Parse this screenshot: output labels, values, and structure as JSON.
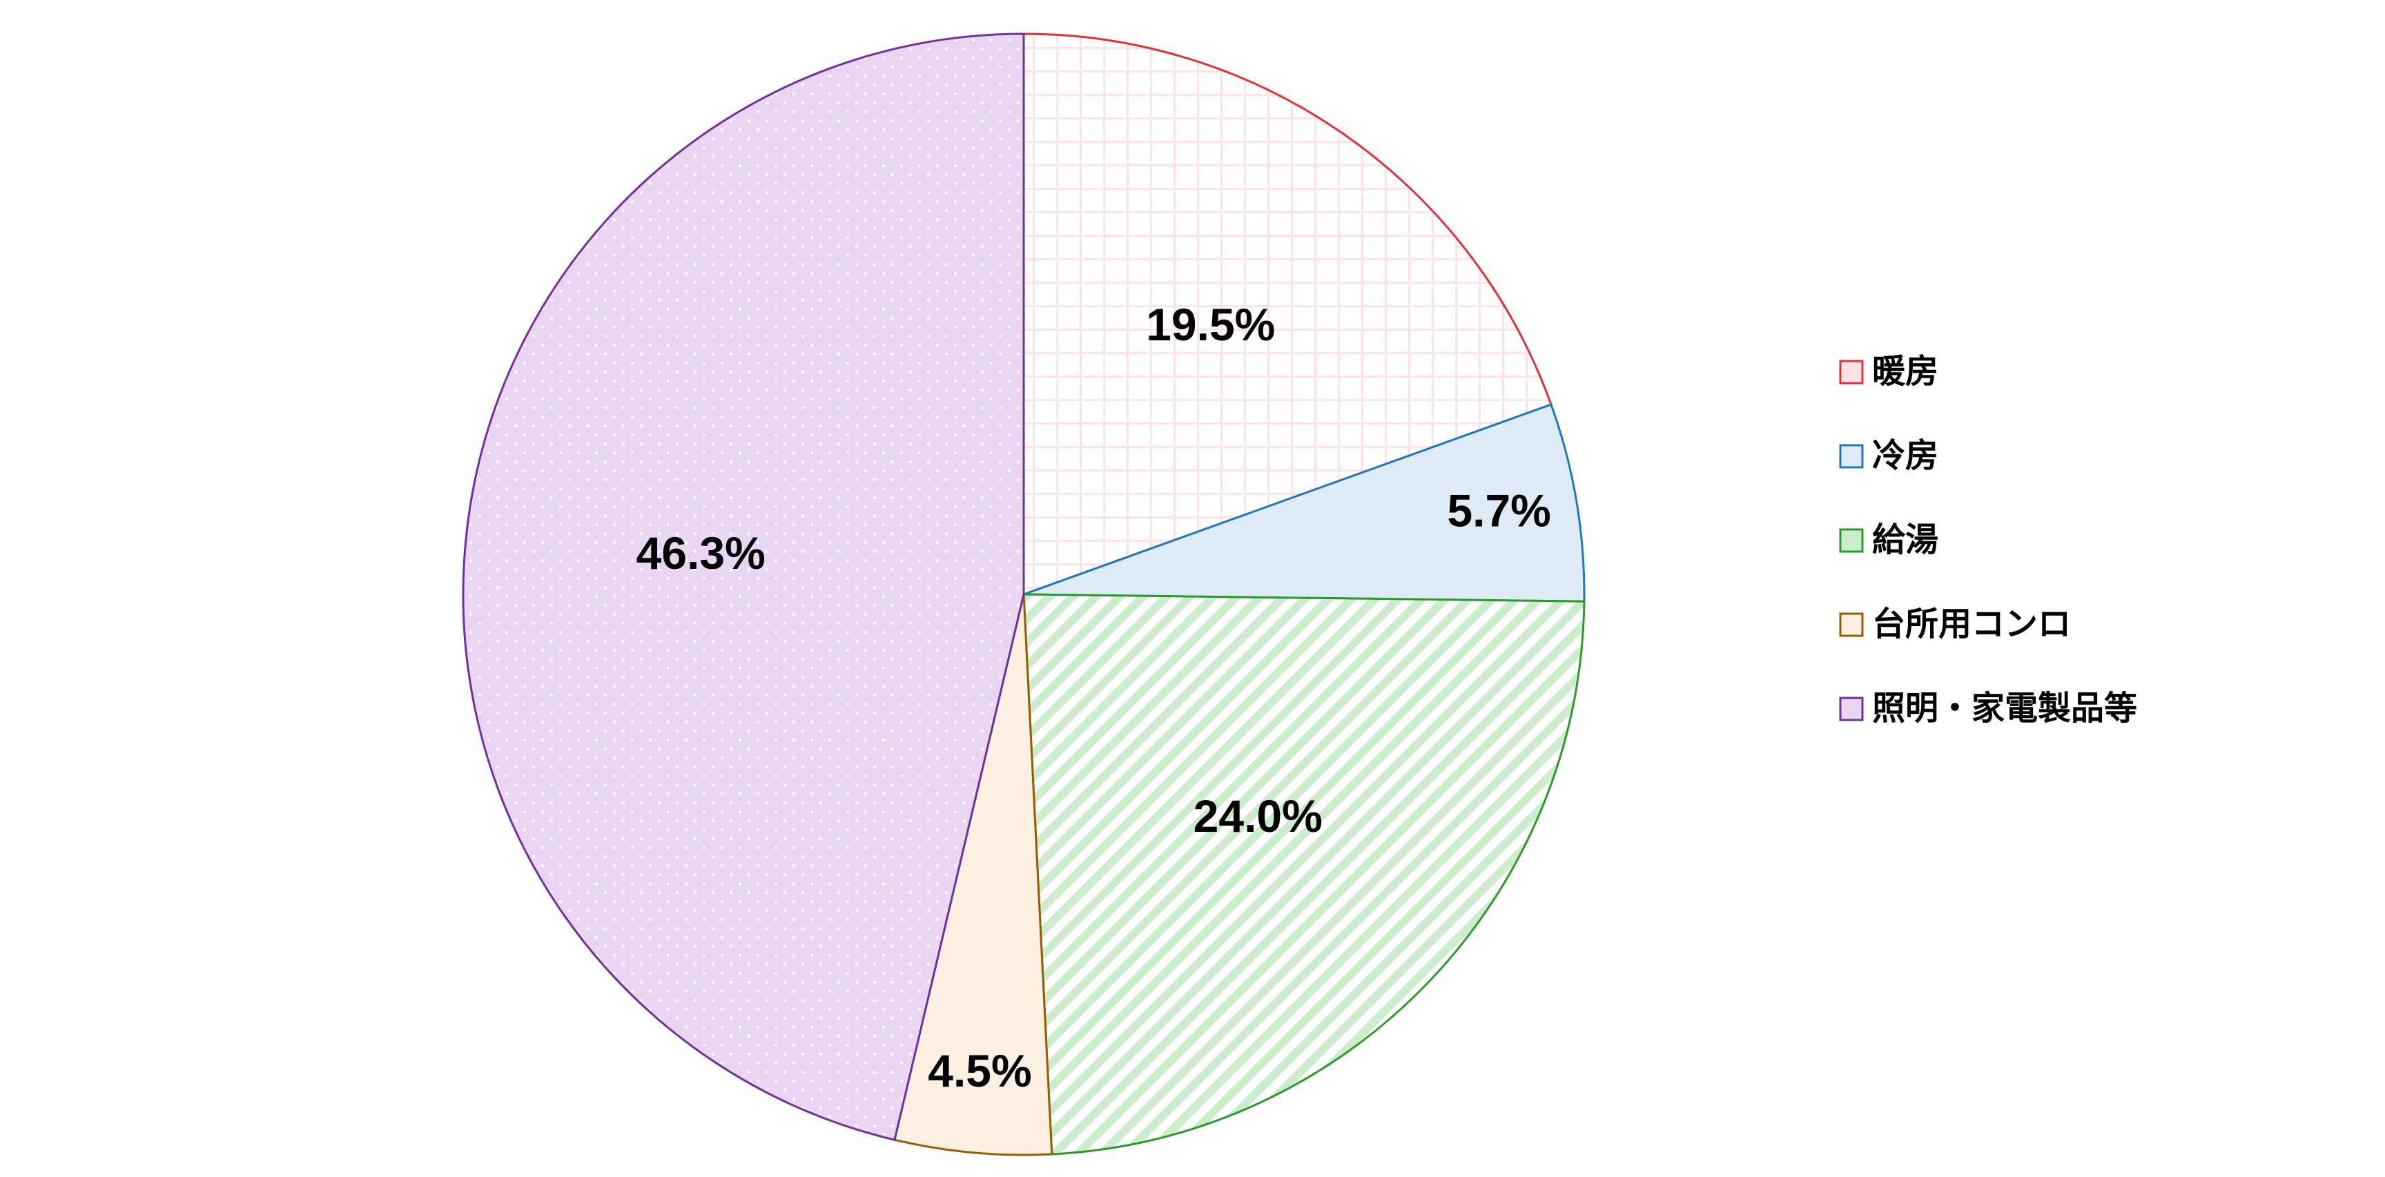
{
  "chart_data": {
    "type": "pie",
    "categories": [
      "暖房",
      "冷房",
      "給湯",
      "台所用コンロ",
      "照明・家電製品等"
    ],
    "values": [
      19.5,
      5.7,
      24.0,
      4.5,
      46.3
    ],
    "value_labels": [
      "19.5%",
      "5.7%",
      "24.0%",
      "4.5%",
      "46.3%"
    ],
    "colors": [
      "#e0303a",
      "#1f77c4",
      "#2a9a2a",
      "#9c5a00",
      "#7030a0"
    ],
    "fills": [
      "#fde3e6",
      "#deebf5",
      "#cdeccb",
      "#fbf0e1",
      "#e8d6f3"
    ],
    "patterns": [
      "grid",
      "solid",
      "stripes",
      "solid",
      "dots"
    ],
    "legend": "right"
  }
}
